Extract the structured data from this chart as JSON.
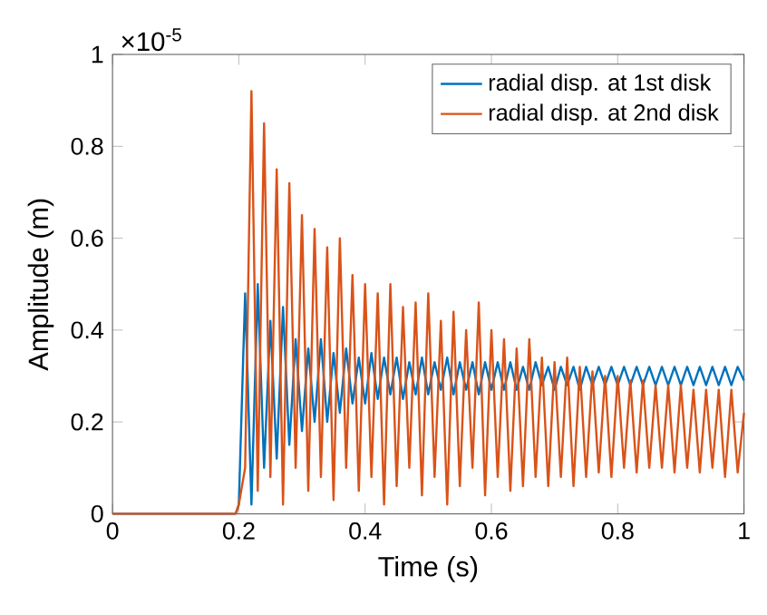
{
  "chart_data": {
    "type": "line",
    "xlabel": "Time (s)",
    "ylabel": "Amplitude (m)",
    "annotations": [
      "×10$^{-5}$"
    ],
    "xlim": [
      0,
      1
    ],
    "ylim": [
      0,
      1
    ],
    "xticks": [
      0,
      0.2,
      0.4,
      0.6,
      0.8,
      1
    ],
    "yticks": [
      0,
      0.2,
      0.4,
      0.6,
      0.8,
      1
    ],
    "grid": false,
    "legend": "top right",
    "line_style": "solid",
    "marker": "none",
    "x": [
      0,
      0.195,
      0.2,
      0.21,
      0.22,
      0.23,
      0.24,
      0.25,
      0.26,
      0.27,
      0.28,
      0.29,
      0.3,
      0.31,
      0.32,
      0.33,
      0.34,
      0.35,
      0.36,
      0.37,
      0.38,
      0.39,
      0.4,
      0.41,
      0.42,
      0.43,
      0.44,
      0.45,
      0.46,
      0.47,
      0.48,
      0.49,
      0.5,
      0.51,
      0.52,
      0.53,
      0.54,
      0.55,
      0.56,
      0.57,
      0.58,
      0.59,
      0.6,
      0.61,
      0.62,
      0.63,
      0.64,
      0.65,
      0.66,
      0.67,
      0.68,
      0.69,
      0.7,
      0.71,
      0.72,
      0.73,
      0.74,
      0.75,
      0.76,
      0.77,
      0.78,
      0.79,
      0.8,
      0.81,
      0.82,
      0.83,
      0.84,
      0.85,
      0.86,
      0.87,
      0.88,
      0.89,
      0.9,
      0.91,
      0.92,
      0.93,
      0.94,
      0.95,
      0.96,
      0.97,
      0.98,
      0.99,
      1
    ],
    "series": [
      {
        "name": "radial disp. at 1st disk",
        "color": "#0072bd",
        "values": [
          0,
          0,
          0.02,
          0.48,
          0.02,
          0.5,
          0.1,
          0.42,
          0.12,
          0.45,
          0.15,
          0.38,
          0.18,
          0.36,
          0.2,
          0.38,
          0.2,
          0.35,
          0.22,
          0.36,
          0.24,
          0.34,
          0.24,
          0.35,
          0.25,
          0.34,
          0.26,
          0.34,
          0.25,
          0.33,
          0.26,
          0.34,
          0.26,
          0.33,
          0.27,
          0.34,
          0.26,
          0.33,
          0.27,
          0.33,
          0.26,
          0.33,
          0.27,
          0.33,
          0.27,
          0.33,
          0.27,
          0.32,
          0.27,
          0.33,
          0.28,
          0.32,
          0.27,
          0.32,
          0.28,
          0.32,
          0.27,
          0.32,
          0.28,
          0.32,
          0.28,
          0.32,
          0.28,
          0.32,
          0.28,
          0.32,
          0.28,
          0.32,
          0.28,
          0.32,
          0.28,
          0.32,
          0.28,
          0.32,
          0.28,
          0.32,
          0.28,
          0.32,
          0.28,
          0.32,
          0.28,
          0.32,
          0.29
        ]
      },
      {
        "name": "radial disp. at 2nd disk",
        "color": "#d95319",
        "values": [
          0,
          0,
          0.02,
          0.1,
          0.92,
          0.05,
          0.85,
          0.08,
          0.75,
          0.02,
          0.72,
          0.1,
          0.65,
          0.05,
          0.62,
          0.08,
          0.58,
          0.03,
          0.6,
          0.1,
          0.52,
          0.05,
          0.5,
          0.08,
          0.48,
          0.02,
          0.5,
          0.06,
          0.45,
          0.1,
          0.46,
          0.04,
          0.48,
          0.08,
          0.42,
          0.02,
          0.44,
          0.06,
          0.4,
          0.1,
          0.46,
          0.04,
          0.4,
          0.08,
          0.38,
          0.05,
          0.36,
          0.06,
          0.38,
          0.08,
          0.34,
          0.06,
          0.33,
          0.08,
          0.34,
          0.06,
          0.32,
          0.08,
          0.31,
          0.09,
          0.3,
          0.08,
          0.3,
          0.1,
          0.29,
          0.09,
          0.29,
          0.1,
          0.28,
          0.1,
          0.28,
          0.09,
          0.28,
          0.1,
          0.27,
          0.09,
          0.27,
          0.1,
          0.27,
          0.08,
          0.27,
          0.09,
          0.22
        ]
      }
    ]
  }
}
